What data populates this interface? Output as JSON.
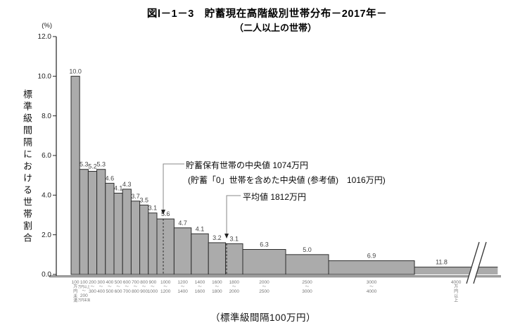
{
  "title": "図Ⅰ－1－3　貯蓄現在高階級別世帯分布－2017年－",
  "subtitle": "（二人以上の世帯）",
  "y_axis": {
    "unit_label": "(%)",
    "axis_label": "標準級間隔における世帯割合"
  },
  "x_axis": {
    "note": "（標準級間隔100万円）"
  },
  "annotations": {
    "median_owners": "貯蓄保有世帯の中央値 1074万円",
    "median_incl_zero": "(貯蓄「0」世帯を含めた中央値 (参考値)　1016万円)",
    "mean": "平均値 1812万円"
  },
  "chart_data": {
    "type": "bar",
    "title": "貯蓄現在高階級別世帯分布－2017年－（二人以上の世帯）",
    "ylabel": "標準級間隔における世帯割合 (%)",
    "xlabel": "貯蓄現在高（標準級間隔100万円）",
    "ylim": [
      0,
      12
    ],
    "y_ticks": [
      0,
      2,
      4,
      6,
      8,
      10,
      12
    ],
    "class_interval_unit": "100万円",
    "bars": [
      {
        "range": "100万円未満",
        "value": 10.0,
        "from": 0,
        "to": 1,
        "tick_lines": [
          "100",
          "万",
          "円",
          "未",
          "満"
        ]
      },
      {
        "range": "100〜200万円",
        "value": 5.3,
        "from": 1,
        "to": 2,
        "tick_lines": [
          "100",
          "万円以上",
          "〜",
          "200",
          "万円未満"
        ]
      },
      {
        "range": "200〜300万円",
        "value": 5.2,
        "from": 2,
        "to": 3,
        "tick_lines": [
          "200",
          "〜",
          "300"
        ]
      },
      {
        "range": "300〜400万円",
        "value": 5.3,
        "from": 3,
        "to": 4,
        "tick_lines": [
          "300",
          "〜",
          "400"
        ]
      },
      {
        "range": "400〜500万円",
        "value": 4.6,
        "from": 4,
        "to": 5,
        "tick_lines": [
          "400",
          "〜",
          "500"
        ]
      },
      {
        "range": "500〜600万円",
        "value": 4.1,
        "from": 5,
        "to": 6,
        "tick_lines": [
          "500",
          "〜",
          "600"
        ]
      },
      {
        "range": "600〜700万円",
        "value": 4.3,
        "from": 6,
        "to": 7,
        "tick_lines": [
          "600",
          "〜",
          "700"
        ]
      },
      {
        "range": "700〜800万円",
        "value": 3.7,
        "from": 7,
        "to": 8,
        "tick_lines": [
          "700",
          "〜",
          "800"
        ]
      },
      {
        "range": "800〜900万円",
        "value": 3.5,
        "from": 8,
        "to": 9,
        "tick_lines": [
          "800",
          "〜",
          "900"
        ]
      },
      {
        "range": "900〜1000万円",
        "value": 3.1,
        "from": 9,
        "to": 10,
        "tick_lines": [
          "900",
          "〜",
          "1000"
        ]
      },
      {
        "range": "1000〜1200万円",
        "value": 5.6,
        "from": 10,
        "to": 12,
        "tick_lines": [
          "1000",
          "〜",
          "1200"
        ]
      },
      {
        "range": "1200〜1400万円",
        "value": 4.7,
        "from": 12,
        "to": 14,
        "tick_lines": [
          "1200",
          "〜",
          "1400"
        ]
      },
      {
        "range": "1400〜1600万円",
        "value": 4.1,
        "from": 14,
        "to": 16,
        "tick_lines": [
          "1400",
          "〜",
          "1600"
        ]
      },
      {
        "range": "1600〜1800万円",
        "value": 3.2,
        "from": 16,
        "to": 18,
        "tick_lines": [
          "1600",
          "〜",
          "1800"
        ]
      },
      {
        "range": "1800〜2000万円",
        "value": 3.1,
        "from": 18,
        "to": 20,
        "tick_lines": [
          "1800",
          "〜",
          "2000"
        ]
      },
      {
        "range": "2000〜2500万円",
        "value": 6.3,
        "from": 20,
        "to": 25,
        "tick_lines": [
          "2000",
          "〜",
          "2500"
        ]
      },
      {
        "range": "2500〜3000万円",
        "value": 5.0,
        "from": 25,
        "to": 30,
        "tick_lines": [
          "2500",
          "〜",
          "3000"
        ]
      },
      {
        "range": "3000〜4000万円",
        "value": 6.9,
        "from": 30,
        "to": 40,
        "tick_lines": [
          "3000",
          "〜",
          "4000"
        ]
      },
      {
        "range": "4000万円以上",
        "value": 11.8,
        "from": 40,
        "to": 49.7,
        "tick_lines": [
          "4000",
          "万",
          "円",
          "以",
          "上"
        ],
        "open_ended": true
      }
    ],
    "markers": {
      "median_owners_value": 1074,
      "median_incl_zero_value": 1016,
      "mean_value": 1812,
      "median_units": 10.74,
      "mean_units": 18.12
    },
    "colors": {
      "bar_fill": "#ababab",
      "bar_border": "#2e2e2e",
      "baseline_band": "#9c9c9c",
      "tick_text": "#777777",
      "value_label": "#444444"
    }
  }
}
